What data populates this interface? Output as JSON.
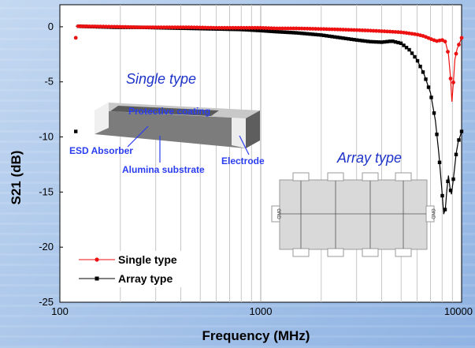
{
  "chart_data": {
    "type": "line",
    "title": "",
    "xlabel": "Frequency (MHz)",
    "ylabel": "S21 (dB)",
    "xscale": "log",
    "xlim": [
      100,
      10000
    ],
    "ylim": [
      -25,
      2
    ],
    "x_ticks": [
      "100",
      "1000",
      "10000"
    ],
    "y_ticks": [
      "0",
      "-5",
      "-10",
      "-15",
      "-20",
      "-25"
    ],
    "grid": "vertical-log",
    "legend_position": "bottom-left",
    "colors": {
      "single": "#ee1111",
      "array": "#000000"
    },
    "series": [
      {
        "name": "Single type",
        "color": "#ee1111",
        "marker": "circle",
        "points": [
          [
            120,
            0.05
          ],
          [
            190,
            0.0
          ],
          [
            250,
            -0.05
          ],
          [
            330,
            -0.05
          ],
          [
            450,
            -0.05
          ],
          [
            600,
            -0.1
          ],
          [
            800,
            -0.1
          ],
          [
            1000,
            -0.1
          ],
          [
            1200,
            -0.15
          ],
          [
            1500,
            -0.15
          ],
          [
            2000,
            -0.2
          ],
          [
            2500,
            -0.25
          ],
          [
            3000,
            -0.3
          ],
          [
            3500,
            -0.35
          ],
          [
            4000,
            -0.4
          ],
          [
            4500,
            -0.45
          ],
          [
            5000,
            -0.5
          ],
          [
            5500,
            -0.6
          ],
          [
            6000,
            -0.7
          ],
          [
            6500,
            -0.85
          ],
          [
            7000,
            -1.1
          ],
          [
            7500,
            -1.3
          ],
          [
            8000,
            -1.2
          ],
          [
            8300,
            -1.35
          ],
          [
            8600,
            -2.5
          ],
          [
            8800,
            -4.5
          ],
          [
            8950,
            -6.8
          ],
          [
            9100,
            -5.0
          ],
          [
            9250,
            -3.0
          ],
          [
            9500,
            -2.0
          ],
          [
            9800,
            -1.4
          ],
          [
            10000,
            -1.0
          ]
        ]
      },
      {
        "name": "Array type",
        "color": "#000000",
        "marker": "square",
        "points": [
          [
            120,
            0.05
          ],
          [
            190,
            -0.05
          ],
          [
            250,
            -0.05
          ],
          [
            330,
            -0.1
          ],
          [
            450,
            -0.15
          ],
          [
            600,
            -0.2
          ],
          [
            800,
            -0.25
          ],
          [
            1000,
            -0.35
          ],
          [
            1200,
            -0.45
          ],
          [
            1500,
            -0.55
          ],
          [
            2000,
            -0.75
          ],
          [
            2500,
            -1.0
          ],
          [
            3000,
            -1.2
          ],
          [
            3500,
            -1.35
          ],
          [
            4000,
            -1.4
          ],
          [
            4500,
            -1.3
          ],
          [
            5000,
            -1.5
          ],
          [
            5500,
            -2.1
          ],
          [
            6000,
            -3.0
          ],
          [
            6500,
            -4.3
          ],
          [
            7000,
            -6.0
          ],
          [
            7400,
            -8.5
          ],
          [
            7700,
            -11.5
          ],
          [
            7950,
            -14.5
          ],
          [
            8150,
            -17.0
          ],
          [
            8300,
            -16.5
          ],
          [
            8450,
            -14.8
          ],
          [
            8600,
            -13.5
          ],
          [
            8750,
            -14.6
          ],
          [
            8900,
            -15.2
          ],
          [
            9050,
            -14.2
          ],
          [
            9200,
            -13.0
          ],
          [
            9400,
            -11.5
          ],
          [
            9600,
            -10.5
          ],
          [
            9800,
            -10.0
          ],
          [
            10000,
            -9.5
          ]
        ]
      }
    ],
    "annotations": {
      "single_type": "Single type",
      "array_type": "Array type",
      "protective_coating": "Protective coating",
      "esd_absorber": "ESD Absorber",
      "alumina_substrate": "Alumina substrate",
      "electrode": "Electrode",
      "gnd": "GND"
    }
  }
}
